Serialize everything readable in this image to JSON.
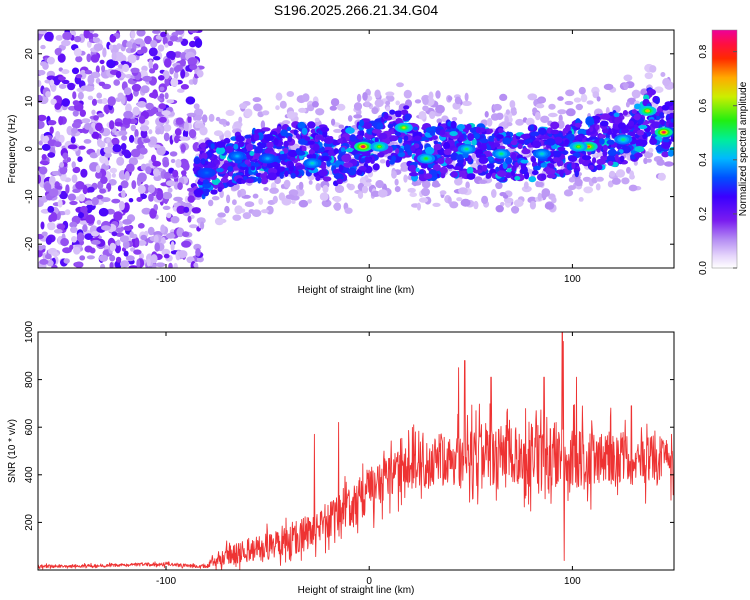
{
  "title": "S196.2025.266.21.34.G04",
  "colors": {
    "snr_line": "#ee3333",
    "background": "#ffffff",
    "axis": "#000000"
  },
  "chart_data": [
    {
      "type": "heatmap",
      "name": "spectrogram",
      "xlabel": "Height of straight line (km)",
      "ylabel": "Frequency (Hz)",
      "xlim": [
        -163,
        150
      ],
      "ylim": [
        -25,
        25
      ],
      "xticks": [
        -100,
        0,
        100
      ],
      "yticks": [
        -20,
        -10,
        0,
        10,
        20
      ],
      "noise_region_x": [
        -163,
        -83
      ],
      "signal_band": [
        {
          "x": -85,
          "y": -5
        },
        {
          "x": -70,
          "y": -3
        },
        {
          "x": -50,
          "y": -1
        },
        {
          "x": -30,
          "y": 0
        },
        {
          "x": -15,
          "y": -2
        },
        {
          "x": -5,
          "y": 0
        },
        {
          "x": 0,
          "y": 1
        },
        {
          "x": 10,
          "y": 2
        },
        {
          "x": 18,
          "y": 4
        },
        {
          "x": 22,
          "y": -1
        },
        {
          "x": 40,
          "y": 0
        },
        {
          "x": 60,
          "y": -1
        },
        {
          "x": 80,
          "y": -1
        },
        {
          "x": 100,
          "y": 0
        },
        {
          "x": 120,
          "y": 2
        },
        {
          "x": 135,
          "y": 4
        },
        {
          "x": 137,
          "y": 8
        },
        {
          "x": 145,
          "y": 4
        }
      ],
      "hotspots": [
        {
          "x": -3,
          "y": 0.5,
          "amp": 0.88
        },
        {
          "x": 145,
          "y": 3.5,
          "amp": 0.85
        },
        {
          "x": 137,
          "y": 8,
          "amp": 0.7
        },
        {
          "x": 108,
          "y": 0.5,
          "amp": 0.75
        },
        {
          "x": 103,
          "y": 0.5,
          "amp": 0.6
        },
        {
          "x": 17,
          "y": 4.5,
          "amp": 0.65
        },
        {
          "x": 5,
          "y": 0.5,
          "amp": 0.6
        },
        {
          "x": 28,
          "y": -2,
          "amp": 0.55
        },
        {
          "x": 48,
          "y": 0,
          "amp": 0.5
        },
        {
          "x": 65,
          "y": -1,
          "amp": 0.5
        },
        {
          "x": 85,
          "y": -1,
          "amp": 0.45
        },
        {
          "x": 125,
          "y": 2,
          "amp": 0.5
        },
        {
          "x": -28,
          "y": -3,
          "amp": 0.45
        },
        {
          "x": -50,
          "y": -2,
          "amp": 0.4
        },
        {
          "x": -65,
          "y": -1.5,
          "amp": 0.4
        },
        {
          "x": -80,
          "y": -5,
          "amp": 0.35
        }
      ]
    },
    {
      "type": "line",
      "name": "snr",
      "xlabel": "Height of straight line (km)",
      "ylabel": "SNR (10 * v/v)",
      "xlim": [
        -163,
        150
      ],
      "ylim": [
        0,
        1000
      ],
      "xticks": [
        -100,
        0,
        100
      ],
      "yticks": [
        200,
        400,
        600,
        800,
        1000
      ],
      "envelope": {
        "x": [
          -163,
          -120,
          -110,
          -80,
          -75,
          -60,
          -40,
          -25,
          -10,
          0,
          10,
          25,
          50,
          80,
          100,
          120,
          150
        ],
        "mean": [
          15,
          20,
          25,
          15,
          50,
          80,
          120,
          180,
          250,
          330,
          400,
          450,
          470,
          480,
          470,
          470,
          470
        ],
        "spread": [
          8,
          8,
          10,
          8,
          40,
          60,
          80,
          100,
          110,
          120,
          120,
          130,
          160,
          170,
          170,
          150,
          130
        ]
      },
      "peaks": [
        {
          "x": 95,
          "y": 1000
        },
        {
          "x": 95.5,
          "y": 960
        },
        {
          "x": 47,
          "y": 880
        },
        {
          "x": 44,
          "y": 850
        },
        {
          "x": 60,
          "y": 810
        },
        {
          "x": 86,
          "y": 810
        },
        {
          "x": 102,
          "y": 810
        },
        {
          "x": -27,
          "y": 570
        },
        {
          "x": -15,
          "y": 620
        },
        {
          "x": 129,
          "y": 690
        },
        {
          "x": 96,
          "y": 40
        }
      ]
    }
  ],
  "colorbar": {
    "label": "Normalized spectral amplitude",
    "min": 0.0,
    "max": 0.88,
    "ticks": [
      "0.0",
      "0.2",
      "0.4",
      "0.6",
      "0.8"
    ],
    "tick_values": [
      0.0,
      0.2,
      0.4,
      0.6,
      0.8
    ],
    "stops": [
      "#ffffff",
      "#d9c4f7",
      "#a070f0",
      "#6a00e0",
      "#3300ff",
      "#0066ff",
      "#00ccff",
      "#00ee88",
      "#44ee00",
      "#eeee00",
      "#ff8800",
      "#ff1010",
      "#ee00aa"
    ]
  }
}
